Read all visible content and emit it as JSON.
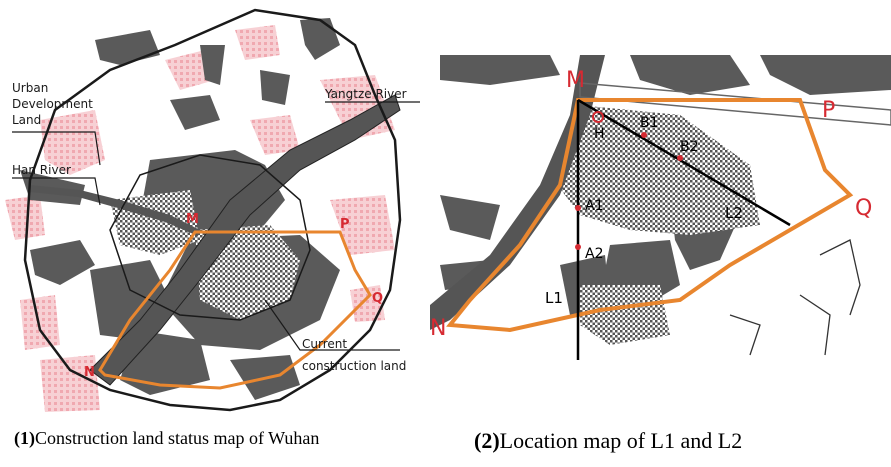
{
  "colors": {
    "built": "#5a5a5a",
    "urban_dev": "#f3b7bd",
    "boundary": "#e8862f",
    "river_outline": "#333333",
    "label_red": "#d62a32",
    "outline": "#1a1a1a"
  },
  "map1": {
    "labels": {
      "urban_dev": "Urban\nDevelopment\nLand",
      "han_river": "Han River",
      "yangtze": "Yangtze River",
      "current": "Current\nconstruction land"
    },
    "points": {
      "M": "M",
      "P": "P",
      "Q": "Q",
      "N": "N"
    }
  },
  "map2": {
    "points": {
      "M": "M",
      "P": "P",
      "Q": "Q",
      "N": "N",
      "H": "H",
      "B1": "B1",
      "B2": "B2",
      "A1": "A1",
      "A2": "A2"
    },
    "lines": {
      "L1": "L1",
      "L2": "L2"
    }
  },
  "captions": {
    "cap1_num": "(1)",
    "cap1_text": "Construction land status map of Wuhan",
    "cap2_num": "(2)",
    "cap2_text": "Location map of L1 and L2"
  }
}
